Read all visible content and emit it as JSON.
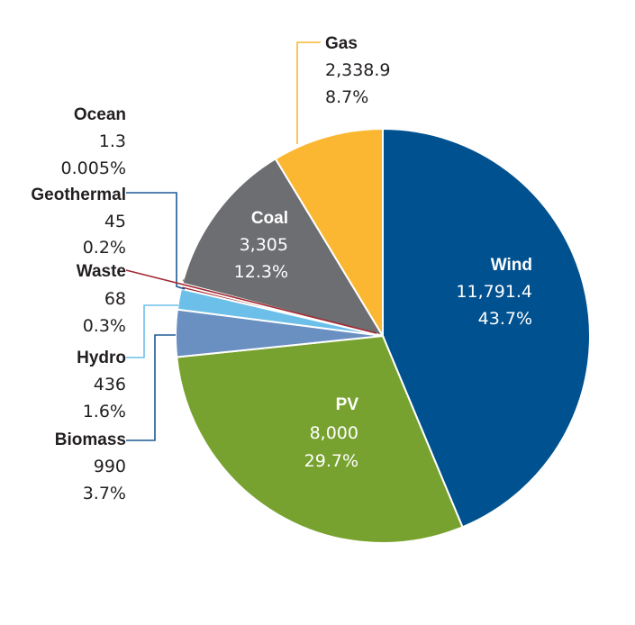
{
  "chart_data": {
    "type": "pie",
    "title": "",
    "slices": [
      {
        "name": "Wind",
        "value": "11,791.4",
        "percent": "43.7%",
        "v": 11791.4,
        "color": "#00518f"
      },
      {
        "name": "PV",
        "value": "8,000",
        "percent": "29.7%",
        "v": 8000,
        "color": "#78a22f"
      },
      {
        "name": "Biomass",
        "value": "990",
        "percent": "3.7%",
        "v": 990,
        "color": "#6a8fc1"
      },
      {
        "name": "Hydro",
        "value": "436",
        "percent": "1.6%",
        "v": 436,
        "color": "#6cbfe9"
      },
      {
        "name": "Waste",
        "value": "68",
        "percent": "0.3%",
        "v": 68,
        "color": "#a3272f"
      },
      {
        "name": "Geothermal",
        "value": "45",
        "percent": "0.2%",
        "v": 45,
        "color": "#1d5a96"
      },
      {
        "name": "Ocean",
        "value": "1.3",
        "percent": "0.005%",
        "v": 1.3,
        "color": "#8a8f94"
      },
      {
        "name": "Coal",
        "value": "3,305",
        "percent": "12.3%",
        "v": 3305,
        "color": "#6d6e71"
      },
      {
        "name": "Gas",
        "value": "2,338.9",
        "percent": "8.7%",
        "v": 2338.9,
        "color": "#fbb731"
      }
    ]
  }
}
